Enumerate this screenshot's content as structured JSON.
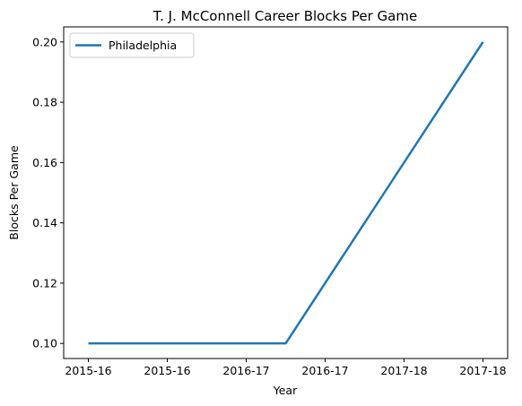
{
  "chart_data": {
    "type": "line",
    "title": "T. J. McConnell Career Blocks Per Game",
    "xlabel": "Year",
    "ylabel": "Blocks Per Game",
    "x_tick_labels": [
      "2015-16",
      "2015-16",
      "2016-17",
      "2016-17",
      "2017-18",
      "2017-18"
    ],
    "y_ticks": [
      0.1,
      0.12,
      0.14,
      0.16,
      0.18,
      0.2
    ],
    "y_tick_labels": [
      "0.10",
      "0.12",
      "0.14",
      "0.16",
      "0.18",
      "0.20"
    ],
    "ylim": [
      0.095,
      0.205
    ],
    "xlim": [
      -0.25,
      4.25
    ],
    "grid": false,
    "legend_position": "top-left",
    "series": [
      {
        "name": "Philadelphia",
        "color": "#1f77b4",
        "x": [
          0,
          1,
          2,
          3,
          4
        ],
        "y": [
          0.1,
          0.1,
          0.1,
          0.15,
          0.2
        ]
      }
    ]
  }
}
